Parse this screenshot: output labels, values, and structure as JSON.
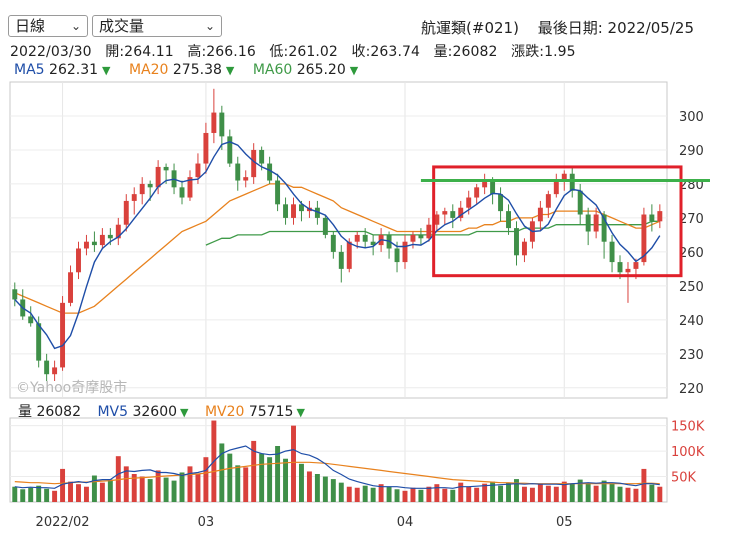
{
  "header": {
    "period_select": "日線",
    "indicator_select": "成交量",
    "stock_name": "航運類(#021)",
    "last_date_label": "最後日期: 2022/05/25"
  },
  "ohlc_bar": {
    "date": "2022/03/30",
    "open": "開:264.11",
    "high": "高:266.16",
    "low": "低:261.02",
    "close": "收:263.74",
    "volume": "量:26082",
    "change": "漲跌:1.95"
  },
  "ma_legend": [
    {
      "label": "MA5",
      "value": "262.31",
      "color": "#1f4ea8"
    },
    {
      "label": "MA20",
      "value": "275.38",
      "color": "#e8821e"
    },
    {
      "label": "MA60",
      "value": "265.20",
      "color": "#3f9a48"
    }
  ],
  "vol_legend": [
    {
      "label": "量",
      "value": "26082",
      "color": "#222222"
    },
    {
      "label": "MV5",
      "value": "32600",
      "color": "#1f4ea8"
    },
    {
      "label": "MV20",
      "value": "75715",
      "color": "#e8821e"
    }
  ],
  "watermark": "©Yahoo奇摩股市",
  "colors": {
    "up": "#d9413c",
    "down": "#3f8f48",
    "ma5": "#1f4ea8",
    "ma20": "#e8821e",
    "ma60": "#3f9a48",
    "annotation_box": "#e0202a",
    "annotation_line": "#3cb04a"
  },
  "chart_data": {
    "type": "candlestick",
    "price_axis": {
      "ticks": [
        220,
        230,
        240,
        250,
        260,
        270,
        280,
        290,
        300
      ],
      "range": [
        217,
        310
      ]
    },
    "volume_axis": {
      "ticks": [
        "50K",
        "100K",
        "150K"
      ],
      "tick_values": [
        50,
        100,
        150
      ],
      "range": [
        0,
        165
      ],
      "unit": "K"
    },
    "x_labels": [
      {
        "label": "2022/02",
        "index": 6
      },
      {
        "label": "03",
        "index": 24
      },
      {
        "label": "04",
        "index": 49
      },
      {
        "label": "05",
        "index": 69
      }
    ],
    "candles": [
      [
        249,
        246,
        251,
        244
      ],
      [
        246,
        241,
        249,
        240
      ],
      [
        241,
        239,
        244,
        238
      ],
      [
        239,
        228,
        241,
        226
      ],
      [
        228,
        224,
        230,
        222
      ],
      [
        224,
        226,
        228,
        222
      ],
      [
        226,
        245,
        247,
        225
      ],
      [
        245,
        254,
        256,
        244
      ],
      [
        254,
        261,
        263,
        252
      ],
      [
        261,
        263,
        265,
        259
      ],
      [
        263,
        262,
        266,
        260
      ],
      [
        262,
        265,
        267,
        261
      ],
      [
        265,
        264,
        267,
        262
      ],
      [
        264,
        268,
        270,
        262
      ],
      [
        268,
        275,
        277,
        266
      ],
      [
        275,
        277,
        279,
        271
      ],
      [
        277,
        280,
        282,
        274
      ],
      [
        280,
        279,
        281,
        275
      ],
      [
        279,
        285,
        287,
        277
      ],
      [
        285,
        284,
        286,
        280
      ],
      [
        284,
        279,
        286,
        277
      ],
      [
        279,
        276,
        281,
        274
      ],
      [
        276,
        282,
        284,
        275
      ],
      [
        282,
        286,
        289,
        280
      ],
      [
        286,
        295,
        298,
        283
      ],
      [
        295,
        301,
        308,
        292
      ],
      [
        301,
        294,
        303,
        290
      ],
      [
        294,
        286,
        296,
        285
      ],
      [
        286,
        281,
        288,
        278
      ],
      [
        281,
        282,
        284,
        279
      ],
      [
        282,
        290,
        292,
        280
      ],
      [
        290,
        286,
        291,
        284
      ],
      [
        286,
        281,
        288,
        280
      ],
      [
        281,
        274,
        283,
        272
      ],
      [
        274,
        270,
        276,
        268
      ],
      [
        270,
        274,
        276,
        268
      ],
      [
        274,
        272,
        275,
        269
      ],
      [
        272,
        273,
        275,
        270
      ],
      [
        273,
        270,
        275,
        268
      ],
      [
        270,
        265,
        271,
        264
      ],
      [
        265,
        260,
        266,
        258
      ],
      [
        260,
        255,
        262,
        251
      ],
      [
        255,
        263,
        264,
        254
      ],
      [
        263,
        265,
        266,
        261
      ],
      [
        265,
        263,
        267,
        261
      ],
      [
        263,
        262,
        265,
        259
      ],
      [
        262,
        265,
        267,
        260
      ],
      [
        265,
        261,
        266,
        258
      ],
      [
        261,
        257,
        263,
        254
      ],
      [
        257,
        263,
        265,
        255
      ],
      [
        263,
        265,
        266,
        261
      ],
      [
        265,
        264,
        267,
        262
      ],
      [
        264,
        268,
        270,
        263
      ],
      [
        268,
        271,
        272,
        266
      ],
      [
        271,
        272,
        273,
        268
      ],
      [
        272,
        270,
        274,
        267
      ],
      [
        270,
        273,
        275,
        269
      ],
      [
        273,
        276,
        278,
        271
      ],
      [
        276,
        279,
        280,
        274
      ],
      [
        279,
        281,
        283,
        277
      ],
      [
        281,
        277,
        282,
        274
      ],
      [
        277,
        272,
        279,
        269
      ],
      [
        272,
        267,
        274,
        265
      ],
      [
        267,
        259,
        269,
        256
      ],
      [
        259,
        263,
        264,
        257
      ],
      [
        263,
        269,
        270,
        261
      ],
      [
        269,
        273,
        275,
        266
      ],
      [
        273,
        277,
        278,
        270
      ],
      [
        277,
        281,
        283,
        276
      ],
      [
        281,
        283,
        284,
        278
      ],
      [
        283,
        278,
        285,
        276
      ],
      [
        278,
        271,
        280,
        268
      ],
      [
        271,
        266,
        273,
        262
      ],
      [
        266,
        271,
        273,
        264
      ],
      [
        271,
        263,
        272,
        258
      ],
      [
        263,
        257,
        265,
        254
      ],
      [
        257,
        254,
        259,
        252
      ],
      [
        254,
        255,
        257,
        245
      ],
      [
        255,
        257,
        258,
        252
      ],
      [
        257,
        271,
        273,
        256
      ],
      [
        271,
        269,
        274,
        266
      ],
      [
        269,
        272,
        274,
        267
      ]
    ],
    "volume": [
      30,
      25,
      28,
      32,
      26,
      22,
      65,
      40,
      35,
      30,
      52,
      38,
      44,
      90,
      70,
      55,
      50,
      45,
      62,
      48,
      42,
      58,
      70,
      55,
      88,
      160,
      115,
      95,
      72,
      68,
      120,
      95,
      88,
      110,
      85,
      150,
      75,
      60,
      55,
      50,
      45,
      38,
      30,
      28,
      32,
      28,
      35,
      30,
      25,
      22,
      28,
      24,
      30,
      35,
      26,
      24,
      38,
      30,
      28,
      36,
      40,
      32,
      38,
      45,
      30,
      28,
      35,
      32,
      30,
      40,
      36,
      44,
      38,
      32,
      42,
      36,
      30,
      28,
      26,
      65,
      34,
      30
    ],
    "mv5": [
      30,
      28,
      29,
      28,
      28,
      27,
      35,
      38,
      40,
      38,
      42,
      44,
      44,
      55,
      61,
      60,
      62,
      63,
      58,
      58,
      56,
      52,
      56,
      58,
      62,
      80,
      95,
      102,
      106,
      110,
      100,
      95,
      93,
      94,
      100,
      103,
      95,
      92,
      85,
      75,
      62,
      54,
      45,
      40,
      36,
      32,
      30,
      30,
      30,
      28,
      27,
      27,
      27,
      28,
      28,
      27,
      30,
      30,
      31,
      32,
      33,
      34,
      35,
      36,
      35,
      36,
      35,
      35,
      35,
      34,
      36,
      37,
      38,
      37,
      38,
      38,
      37,
      34,
      32,
      36,
      36,
      34
    ],
    "mv20": [
      40,
      39,
      38,
      38,
      37,
      36,
      37,
      38,
      39,
      39,
      40,
      41,
      42,
      44,
      46,
      47,
      48,
      49,
      50,
      51,
      52,
      53,
      54,
      55,
      57,
      60,
      63,
      66,
      68,
      70,
      72,
      74,
      75,
      76,
      77,
      78,
      78,
      78,
      77,
      76,
      74,
      72,
      70,
      68,
      66,
      64,
      62,
      60,
      58,
      56,
      54,
      52,
      50,
      48,
      46,
      44,
      43,
      42,
      41,
      40,
      39,
      38,
      38,
      37,
      37,
      36,
      36,
      36,
      36,
      36,
      36,
      36,
      36,
      36,
      36,
      36,
      36,
      36,
      36,
      37,
      37,
      36
    ],
    "ma20": [
      248,
      247,
      246,
      245,
      244,
      243,
      242,
      242,
      242,
      243,
      244,
      246,
      248,
      250,
      252,
      254,
      256,
      258,
      260,
      262,
      264,
      266,
      267,
      268,
      269,
      271,
      273,
      275,
      276,
      277,
      278,
      279,
      280,
      280,
      280,
      279,
      279,
      278,
      277,
      276,
      275,
      273,
      272,
      271,
      270,
      269,
      268,
      267,
      266,
      266,
      266,
      266,
      266,
      266,
      266,
      266,
      266,
      267,
      267,
      268,
      268,
      269,
      269,
      270,
      270,
      270,
      271,
      271,
      272,
      272,
      272,
      272,
      272,
      272,
      271,
      270,
      269,
      268,
      267,
      267,
      268,
      269
    ],
    "ma60": [
      null,
      null,
      null,
      null,
      null,
      null,
      null,
      null,
      null,
      null,
      null,
      null,
      null,
      null,
      null,
      null,
      null,
      null,
      null,
      null,
      null,
      null,
      null,
      null,
      262,
      263,
      264,
      264,
      265,
      265,
      265,
      265,
      266,
      266,
      266,
      266,
      266,
      266,
      266,
      266,
      266,
      266,
      266,
      266,
      266,
      265,
      265,
      265,
      265,
      265,
      265,
      265,
      265,
      265,
      265,
      265,
      265,
      265,
      266,
      266,
      266,
      266,
      266,
      266,
      267,
      267,
      267,
      267,
      268,
      268,
      268,
      268,
      268,
      268,
      268,
      268,
      268,
      268,
      268,
      268,
      269,
      269
    ]
  },
  "annotations": {
    "box": {
      "from_index": 53,
      "to_index": 84,
      "price_top": 285,
      "price_bottom": 253
    },
    "line_price": 281,
    "line_from_index": 51
  }
}
